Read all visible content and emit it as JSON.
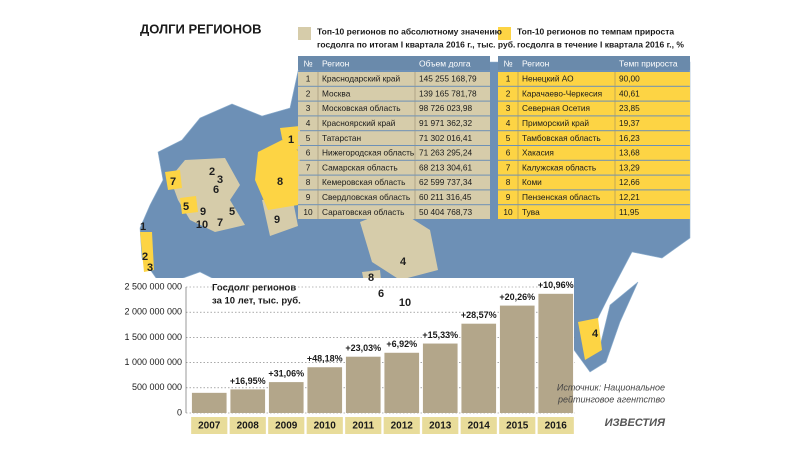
{
  "title": "ДОЛГИ РЕГИОНОВ",
  "table_abs": {
    "caption": [
      "Топ-10 регионов по абсолютному значению",
      "госдолга по итогам I квартала 2016 г., тыс. руб."
    ],
    "columns": [
      "№",
      "Регион",
      "Объем долга"
    ],
    "rows": [
      [
        "1",
        "Краснодарский край",
        "145 255 168,79"
      ],
      [
        "2",
        "Москва",
        "139 165 781,78"
      ],
      [
        "3",
        "Московская область",
        "98 726 023,98"
      ],
      [
        "4",
        "Красноярский край",
        "91 971 362,32"
      ],
      [
        "5",
        "Татарстан",
        "71 302 016,41"
      ],
      [
        "6",
        "Нижегородская область",
        "71 263 295,24"
      ],
      [
        "7",
        "Самарская область",
        "68 213 304,61"
      ],
      [
        "8",
        "Кемеровская область",
        "62 599 737,34"
      ],
      [
        "9",
        "Свердловская область",
        "60 211 316,45"
      ],
      [
        "10",
        "Саратовская область",
        "50 404 768,73"
      ]
    ]
  },
  "table_growth": {
    "caption": [
      "Топ-10 регионов по темпам прироста",
      "госдолга в течение I квартала 2016 г., %"
    ],
    "columns": [
      "№",
      "Регион",
      "Темп прироста"
    ],
    "rows": [
      [
        "1",
        "Ненецкий АО",
        "90,00"
      ],
      [
        "2",
        "Карачаево-Черкесия",
        "40,61"
      ],
      [
        "3",
        "Северная Осетия",
        "23,85"
      ],
      [
        "4",
        "Приморский край",
        "19,37"
      ],
      [
        "5",
        "Тамбовская область",
        "16,23"
      ],
      [
        "6",
        "Хакасия",
        "13,68"
      ],
      [
        "7",
        "Калужская область",
        "13,29"
      ],
      [
        "8",
        "Коми",
        "12,66"
      ],
      [
        "9",
        "Пензенская область",
        "12,21"
      ],
      [
        "10",
        "Тува",
        "11,95"
      ]
    ]
  },
  "map": {
    "labels": [
      "1",
      "8",
      "2",
      "3",
      "7",
      "6",
      "5",
      "9",
      "7",
      "5",
      "10",
      "9",
      "1",
      "2",
      "3",
      "4",
      "8",
      "6",
      "10",
      "4"
    ]
  },
  "chart_data": {
    "type": "bar",
    "title": [
      "Госдолг регионов",
      "за 10 лет, тыс. руб."
    ],
    "categories": [
      "2007",
      "2008",
      "2009",
      "2010",
      "2011",
      "2012",
      "2013",
      "2014",
      "2015",
      "2016"
    ],
    "values": [
      400000000,
      468000000,
      613000000,
      908000000,
      1117000000,
      1195000000,
      1378000000,
      1772000000,
      2131000000,
      2365000000
    ],
    "growth_labels": [
      null,
      "+16,95%",
      "+31,06%",
      "+48,18%",
      "+23,03%",
      "+6,92%",
      "+15,33%",
      "+28,57%",
      "+20,26%",
      "+10,96%"
    ],
    "color": "#b3a68a",
    "ylim": [
      0,
      2500000000
    ],
    "yticks": [
      0,
      {
        "value": 500000000,
        "label": "500 000 000"
      },
      {
        "value": 1000000000,
        "label": "1 000 000 000"
      },
      {
        "value": 1500000000,
        "label": "1 500 000 000"
      },
      {
        "value": 2000000000,
        "label": "2 000 000 000"
      },
      {
        "value": 2500000000,
        "label": "2 500 000 000"
      }
    ],
    "grid": true
  },
  "source": [
    "Источник: Национальное",
    "рейтинговое агентство"
  ],
  "logo": "ИЗВЕСТИЯ"
}
